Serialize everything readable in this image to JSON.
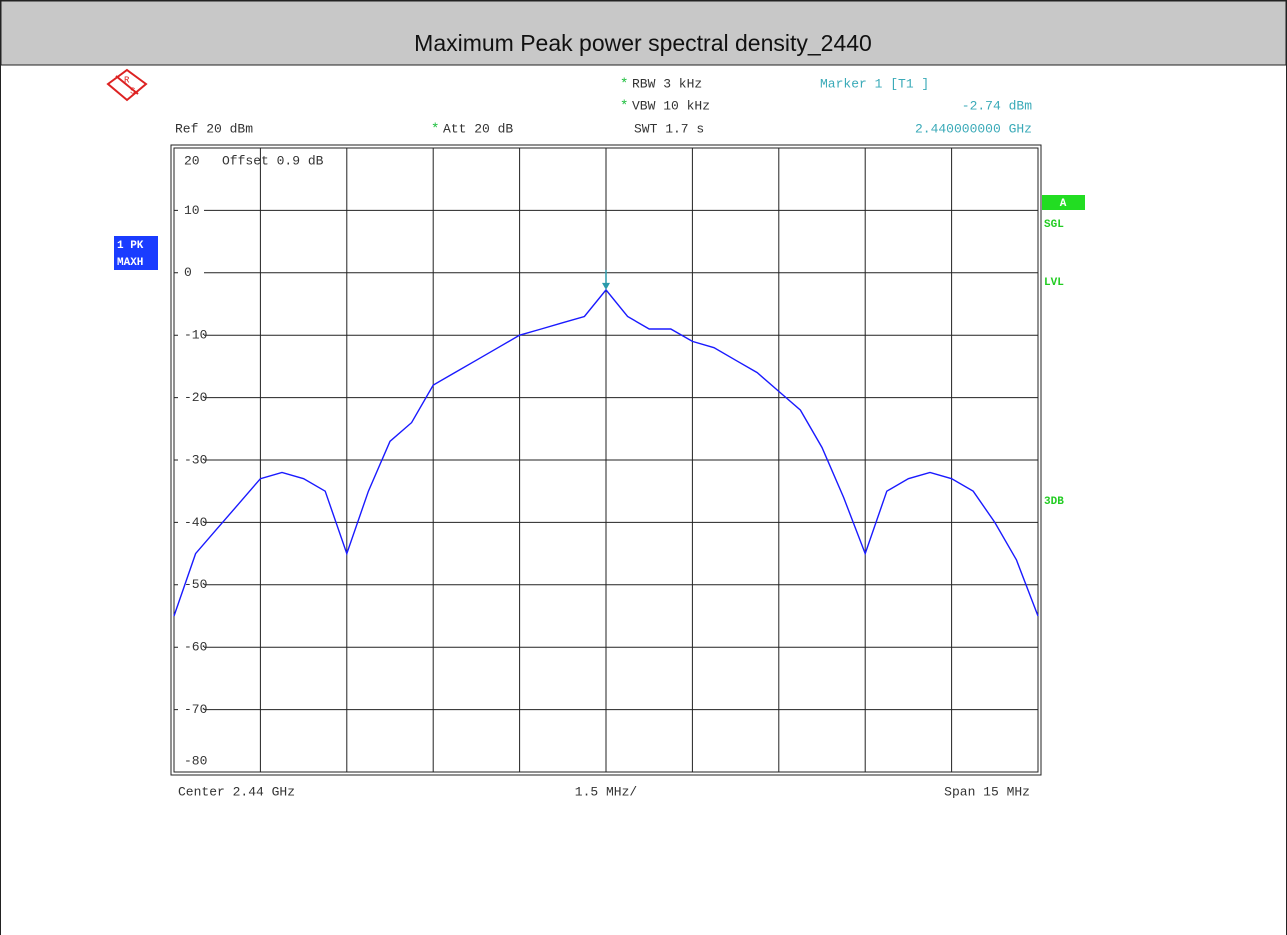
{
  "chart_data": {
    "type": "line",
    "title": "Maximum Peak power spectral density_2440",
    "settings": {
      "flag": "*",
      "rbw": "RBW 3 kHz",
      "vbw": "VBW 10 kHz",
      "swt": "SWT 1.7 s",
      "ref": "Ref 20 dBm",
      "att": "Att 20 dB",
      "offset": "Offset 0.9 dB"
    },
    "marker": {
      "label": "Marker 1 [T1 ]",
      "level": "-2.74 dBm",
      "frequency": "2.440000000 GHz"
    },
    "logo": {
      "top": "R",
      "bottom": "S"
    },
    "trace_labels": [
      "1 PK",
      "MAXH"
    ],
    "status_labels": {
      "box": "A",
      "sgl": "SGL",
      "lvl": "LVL",
      "db": "3DB"
    },
    "x_labels": {
      "center": "Center 2.44 GHz",
      "division": "1.5 MHz/",
      "span": "Span 15 MHz"
    },
    "color": "#1a1aff",
    "values": [
      -55,
      -45,
      -41,
      -37,
      -33,
      -32,
      -33,
      -35,
      -45,
      -35,
      -27,
      -24,
      -18,
      -16,
      -14,
      -12,
      -10,
      -9,
      -8,
      -7,
      -2.74,
      -7,
      -9,
      -9,
      -11,
      -12,
      -14,
      -16,
      -19,
      -22,
      -28,
      -36,
      -45,
      -35,
      -33,
      -32,
      -33,
      -35,
      -40,
      -46,
      -55
    ],
    "ylim": [
      -80,
      20
    ],
    "yticks": [
      20,
      10,
      0,
      -10,
      -20,
      -30,
      -40,
      -50,
      -60,
      -70,
      -80
    ],
    "grid": true
  }
}
